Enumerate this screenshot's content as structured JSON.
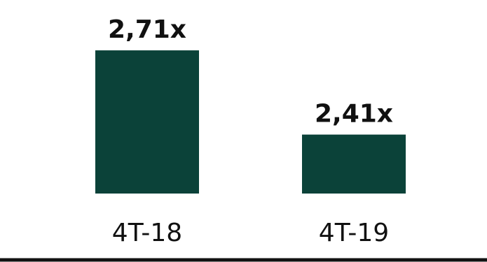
{
  "chart_data": {
    "type": "bar",
    "categories": [
      "4T-18",
      "4T-19"
    ],
    "values": [
      2.71,
      2.41
    ],
    "value_labels": [
      "2,71x",
      "2,41x"
    ],
    "title": "",
    "xlabel": "",
    "ylabel": "",
    "ylim": [
      2.2,
      2.75
    ],
    "grid": false,
    "legend": "none",
    "colors": {
      "bar": "#0B4239",
      "text": "#111111",
      "axis": "#111111"
    }
  }
}
